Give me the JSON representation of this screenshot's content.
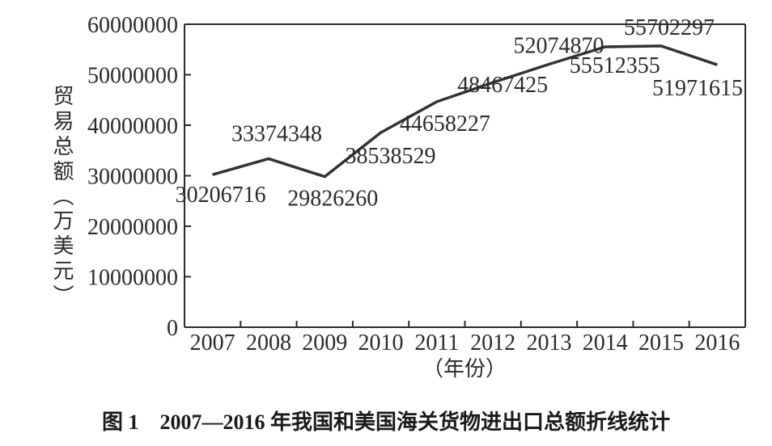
{
  "chart_data": {
    "type": "line",
    "caption": "图 1　2007—2016 年我国和美国海关货物进出口总额折线统计",
    "ylabel": "贸易总额（万美元）",
    "xlabel": "（年份）",
    "ylim": [
      0,
      60000000
    ],
    "yticks": [
      "0",
      "10000000",
      "20000000",
      "30000000",
      "40000000",
      "50000000",
      "60000000"
    ],
    "categories": [
      "2007",
      "2008",
      "2009",
      "2010",
      "2011",
      "2012",
      "2013",
      "2014",
      "2015",
      "2016"
    ],
    "values": [
      30206716,
      33374348,
      29826260,
      38538529,
      44658227,
      48467425,
      52074870,
      55512355,
      55702297,
      51971615
    ],
    "value_labels": [
      "30206716",
      "33374348",
      "29826260",
      "38538529",
      "44658227",
      "48467425",
      "52074870",
      "55512355",
      "55702297",
      "51971615"
    ],
    "grid": false
  }
}
